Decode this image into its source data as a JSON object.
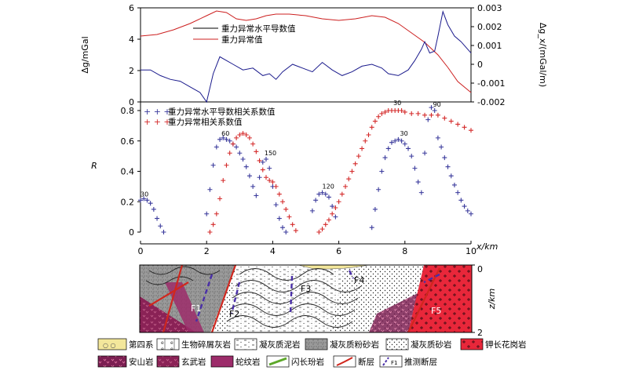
{
  "chart_data": [
    {
      "type": "line",
      "ylabel_left": "Δg/mGal",
      "ylabel_right": "Δg_x/(mGal/m)",
      "x_range": [
        0,
        10
      ],
      "ylim_left": [
        0,
        6
      ],
      "ylim_right": [
        -0.002,
        0.003
      ],
      "left_ticks": [
        "0",
        "2",
        "4",
        "6"
      ],
      "right_ticks": [
        "-0.002",
        "-0.001",
        "0",
        "0.001",
        "0.002",
        "0.003"
      ],
      "series": [
        {
          "name": "重力异常水平导数值",
          "color": "#1a1a8c",
          "axis": "right",
          "x": [
            0,
            0.3,
            0.6,
            0.9,
            1.2,
            1.5,
            1.8,
            2.0,
            2.2,
            2.4,
            2.6,
            2.8,
            3.1,
            3.4,
            3.7,
            3.9,
            4.1,
            4.3,
            4.6,
            4.9,
            5.2,
            5.5,
            5.8,
            6.1,
            6.4,
            6.7,
            7.0,
            7.3,
            7.5,
            7.8,
            8.1,
            8.3,
            8.5,
            8.6,
            8.75,
            8.9,
            9.0,
            9.15,
            9.3,
            9.5,
            9.7,
            9.85,
            10.0
          ],
          "y": [
            -0.0003,
            -0.0003,
            -0.0006,
            -0.0008,
            -0.0009,
            -0.0012,
            -0.0015,
            -0.002,
            -0.0005,
            0.0004,
            0.0002,
            0.0,
            -0.0003,
            -0.0002,
            -0.0006,
            -0.0005,
            -0.0008,
            -0.0004,
            0.0,
            -0.0002,
            -0.0004,
            0.0001,
            -0.0003,
            -0.0006,
            -0.0004,
            -0.0001,
            0.0,
            -0.0002,
            -0.0005,
            -0.0006,
            -0.0003,
            0.0002,
            0.0008,
            0.0012,
            0.0006,
            0.0007,
            0.0015,
            0.0028,
            0.0021,
            0.0015,
            0.0012,
            0.0009,
            0.0006
          ]
        },
        {
          "name": "重力异常值",
          "color": "#cc1f1f",
          "axis": "left",
          "x": [
            0,
            0.5,
            1.0,
            1.5,
            2.0,
            2.3,
            2.6,
            2.9,
            3.2,
            3.5,
            3.8,
            4.1,
            4.5,
            5.0,
            5.5,
            6.0,
            6.5,
            7.0,
            7.4,
            7.8,
            8.2,
            8.6,
            9.0,
            9.3,
            9.6,
            10.0
          ],
          "y": [
            4.2,
            4.3,
            4.6,
            5.0,
            5.5,
            5.8,
            5.7,
            5.3,
            5.2,
            5.3,
            5.5,
            5.6,
            5.6,
            5.5,
            5.3,
            5.2,
            5.3,
            5.5,
            5.4,
            5.0,
            4.4,
            3.8,
            3.0,
            2.2,
            1.3,
            0.6
          ]
        }
      ]
    },
    {
      "type": "scatter",
      "ylabel": "R",
      "xlabel": "x/km",
      "x_range": [
        0,
        10
      ],
      "ylim": [
        0,
        0.8
      ],
      "y_ticks": [
        "0",
        "0.2",
        "0.4",
        "0.6",
        "0.8"
      ],
      "x_ticks": [
        "0",
        "2",
        "4",
        "6",
        "8",
        "10"
      ],
      "series": [
        {
          "name": "重力异常水平导数相关系数值",
          "color": "#3a3a9c",
          "marker": "+",
          "x": [
            0.0,
            0.1,
            0.2,
            0.3,
            0.4,
            0.5,
            0.6,
            0.7,
            2.0,
            2.1,
            2.2,
            2.3,
            2.4,
            2.5,
            2.6,
            2.7,
            2.8,
            2.9,
            3.0,
            3.1,
            3.2,
            3.3,
            3.4,
            3.5,
            3.6,
            3.7,
            3.8,
            3.9,
            4.0,
            4.1,
            4.2,
            4.3,
            4.4,
            5.2,
            5.3,
            5.4,
            5.5,
            5.6,
            5.7,
            5.8,
            5.9,
            7.0,
            7.1,
            7.2,
            7.3,
            7.4,
            7.5,
            7.6,
            7.7,
            7.8,
            7.9,
            8.0,
            8.1,
            8.2,
            8.3,
            8.4,
            8.5,
            8.6,
            8.7,
            8.8,
            8.9,
            9.0,
            9.1,
            9.2,
            9.3,
            9.4,
            9.5,
            9.6,
            9.7,
            9.8,
            9.9,
            10.0
          ],
          "y": [
            0.21,
            0.22,
            0.21,
            0.19,
            0.15,
            0.09,
            0.04,
            0.0,
            0.12,
            0.28,
            0.44,
            0.56,
            0.61,
            0.62,
            0.61,
            0.6,
            0.58,
            0.56,
            0.52,
            0.48,
            0.43,
            0.37,
            0.3,
            0.24,
            0.36,
            0.46,
            0.48,
            0.42,
            0.3,
            0.18,
            0.09,
            0.03,
            0.0,
            0.14,
            0.21,
            0.25,
            0.26,
            0.25,
            0.23,
            0.17,
            0.1,
            0.03,
            0.15,
            0.28,
            0.4,
            0.49,
            0.55,
            0.59,
            0.6,
            0.61,
            0.6,
            0.58,
            0.55,
            0.5,
            0.42,
            0.33,
            0.26,
            0.52,
            0.74,
            0.82,
            0.8,
            0.62,
            0.56,
            0.49,
            0.43,
            0.37,
            0.31,
            0.26,
            0.21,
            0.17,
            0.14,
            0.12
          ]
        },
        {
          "name": "重力异常相关系数值",
          "color": "#d42a2a",
          "marker": "+",
          "x": [
            2.1,
            2.2,
            2.3,
            2.4,
            2.5,
            2.6,
            2.7,
            2.8,
            2.9,
            3.0,
            3.1,
            3.2,
            3.3,
            3.4,
            3.5,
            3.6,
            3.7,
            3.8,
            3.9,
            4.0,
            4.1,
            4.2,
            4.3,
            4.4,
            4.5,
            4.6,
            4.7,
            5.4,
            5.5,
            5.6,
            5.7,
            5.8,
            5.9,
            6.0,
            6.1,
            6.2,
            6.3,
            6.4,
            6.5,
            6.6,
            6.7,
            6.8,
            6.9,
            7.0,
            7.1,
            7.2,
            7.3,
            7.4,
            7.5,
            7.6,
            7.7,
            7.8,
            7.9,
            8.0,
            8.2,
            8.4,
            8.6,
            8.8,
            9.0,
            9.2,
            9.4,
            9.6,
            9.8,
            10.0
          ],
          "y": [
            0.0,
            0.05,
            0.12,
            0.22,
            0.34,
            0.44,
            0.52,
            0.58,
            0.62,
            0.64,
            0.65,
            0.64,
            0.62,
            0.58,
            0.53,
            0.47,
            0.41,
            0.36,
            0.34,
            0.33,
            0.3,
            0.25,
            0.2,
            0.15,
            0.1,
            0.05,
            0.01,
            0.0,
            0.02,
            0.05,
            0.08,
            0.12,
            0.16,
            0.2,
            0.25,
            0.3,
            0.35,
            0.4,
            0.45,
            0.5,
            0.55,
            0.6,
            0.64,
            0.69,
            0.73,
            0.76,
            0.78,
            0.79,
            0.8,
            0.8,
            0.8,
            0.8,
            0.8,
            0.79,
            0.78,
            0.78,
            0.77,
            0.77,
            0.77,
            0.75,
            0.73,
            0.71,
            0.69,
            0.67
          ]
        }
      ],
      "annotations": [
        {
          "text": "30",
          "x": 0.0,
          "y": 0.22
        },
        {
          "text": "60",
          "x": 2.45,
          "y": 0.62
        },
        {
          "text": "150",
          "x": 3.75,
          "y": 0.49
        },
        {
          "text": "120",
          "x": 5.5,
          "y": 0.27
        },
        {
          "text": "30",
          "x": 7.85,
          "y": 0.62
        },
        {
          "text": "30",
          "x": 7.65,
          "y": 0.82
        },
        {
          "text": "90",
          "x": 8.85,
          "y": 0.81
        }
      ]
    }
  ],
  "section": {
    "depth_label": "z/km",
    "depth_ticks": [
      "0",
      "2"
    ],
    "fault_labels": [
      "F1",
      "F2",
      "F3",
      "F4",
      "F5"
    ]
  },
  "legend": {
    "items": [
      {
        "label": "第四系",
        "pattern": "quaternary"
      },
      {
        "label": "生物碎屑灰岩",
        "pattern": "bioclastic"
      },
      {
        "label": "凝灰质泥岩",
        "pattern": "tuff-mud"
      },
      {
        "label": "凝灰质粉砂岩",
        "pattern": "tuff-silt"
      },
      {
        "label": "凝灰质砂岩",
        "pattern": "tuff-sand"
      },
      {
        "label": "钾长花岗岩",
        "pattern": "granite"
      },
      {
        "label": "安山岩",
        "pattern": "andesite"
      },
      {
        "label": "玄武岩",
        "pattern": "basalt"
      },
      {
        "label": "蛇纹岩",
        "pattern": "serpentinite"
      },
      {
        "label": "闪长玢岩",
        "pattern": "diorite"
      },
      {
        "label": "断层",
        "pattern": "fault"
      },
      {
        "label": "推测断层",
        "pattern": "inferred-fault",
        "sublabel": "F1"
      }
    ]
  }
}
